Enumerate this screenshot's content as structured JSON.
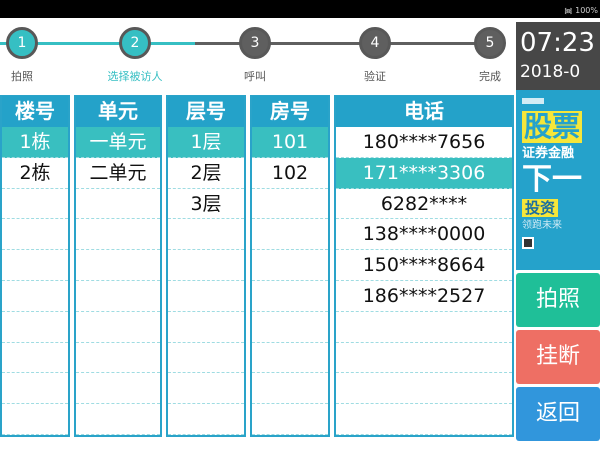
{
  "status_bar": {
    "battery": "100%",
    "icons": [
      "wifi-icon"
    ]
  },
  "steps": [
    {
      "num": "1",
      "label": "拍照",
      "state": "done"
    },
    {
      "num": "2",
      "label": "选择被访人",
      "state": "current"
    },
    {
      "num": "3",
      "label": "呼叫",
      "state": "pending"
    },
    {
      "num": "4",
      "label": "验证",
      "state": "pending"
    },
    {
      "num": "5",
      "label": "完成",
      "state": "pending"
    }
  ],
  "columns": [
    {
      "header": "楼号",
      "rows": [
        "1栋",
        "2栋"
      ],
      "selected": 0
    },
    {
      "header": "单元",
      "rows": [
        "一单元",
        "二单元"
      ],
      "selected": 0
    },
    {
      "header": "层号",
      "rows": [
        "1层",
        "2层",
        "3层"
      ],
      "selected": 0
    },
    {
      "header": "房号",
      "rows": [
        "101",
        "102"
      ],
      "selected": 0
    },
    {
      "header": "电话",
      "rows": [
        "180****7656",
        "171****3306",
        "6282****",
        "138****0000",
        "150****8664",
        "186****2527"
      ],
      "selected": 1
    }
  ],
  "side": {
    "time": "07:23",
    "date": "2018-0",
    "ad": {
      "line1": "股票",
      "line2": "证券金融",
      "line3": "下一",
      "line4": "投资",
      "line5": "领跑未来"
    },
    "buttons": [
      {
        "label": "拍照",
        "color": "#1fbf98"
      },
      {
        "label": "挂断",
        "color": "#ee6f64"
      },
      {
        "label": "返回",
        "color": "#3196dc"
      }
    ]
  },
  "colors": {
    "accent": "#36bfc3",
    "header": "#24a2c9",
    "selected": "#39bfc0"
  }
}
